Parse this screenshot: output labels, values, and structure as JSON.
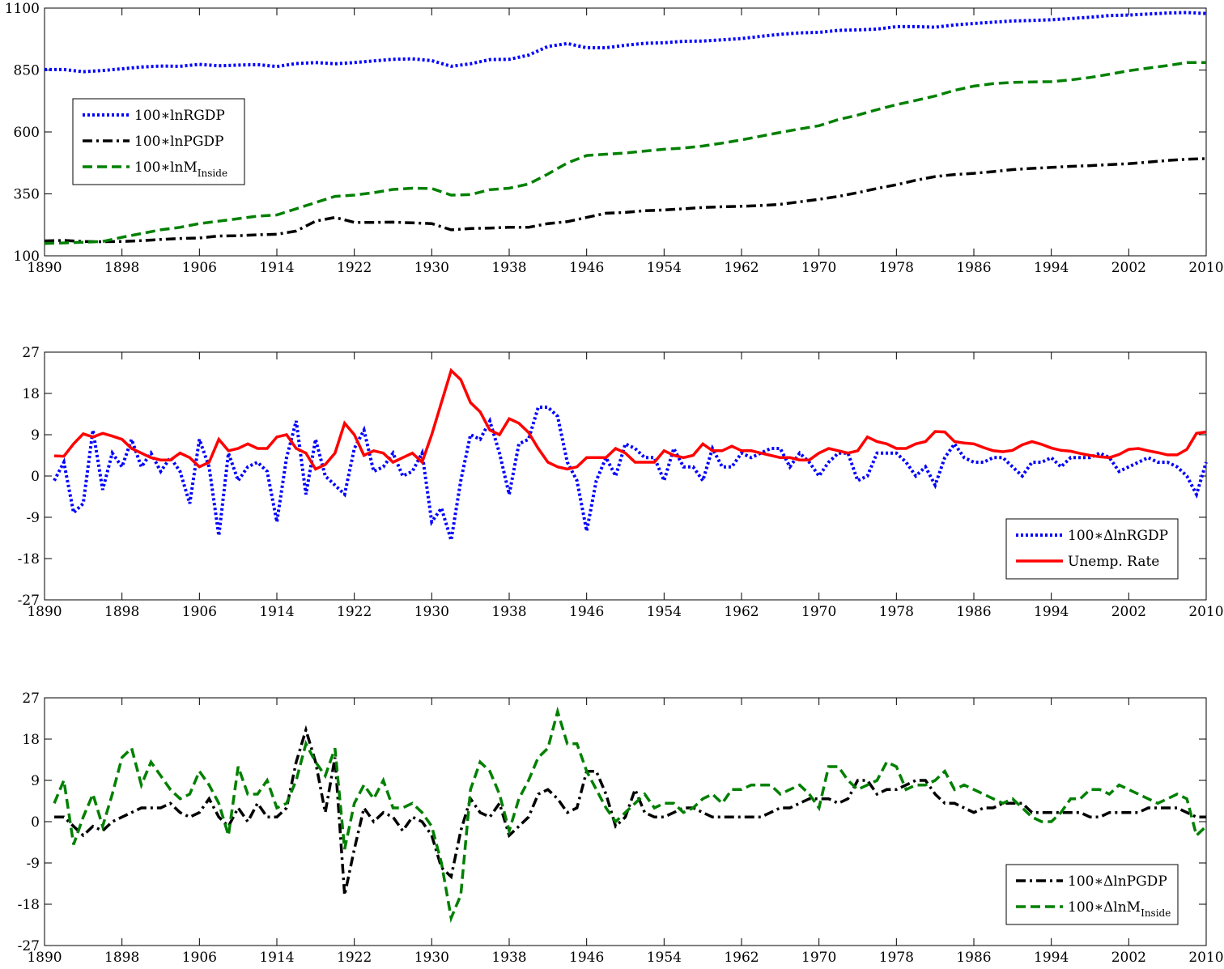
{
  "chart_data": [
    {
      "type": "line",
      "x": [
        1890,
        1892,
        1894,
        1896,
        1898,
        1900,
        1902,
        1904,
        1906,
        1908,
        1910,
        1912,
        1914,
        1916,
        1918,
        1920,
        1922,
        1924,
        1926,
        1928,
        1930,
        1932,
        1934,
        1936,
        1938,
        1940,
        1942,
        1944,
        1946,
        1948,
        1950,
        1952,
        1954,
        1956,
        1958,
        1960,
        1962,
        1964,
        1966,
        1968,
        1970,
        1972,
        1974,
        1976,
        1978,
        1980,
        1982,
        1984,
        1986,
        1988,
        1990,
        1992,
        1994,
        1996,
        1998,
        2000,
        2002,
        2004,
        2006,
        2008,
        2010
      ],
      "xlim": [
        1890,
        2010
      ],
      "xticks": [
        1890,
        1898,
        1906,
        1914,
        1922,
        1930,
        1938,
        1946,
        1954,
        1962,
        1970,
        1978,
        1986,
        1994,
        2002,
        2010
      ],
      "ylim": [
        100,
        1100
      ],
      "yticks": [
        100,
        350,
        600,
        850,
        1100
      ],
      "legend": "upper left",
      "series": [
        {
          "name": "100∗lnRGDP",
          "color": "#0000ff",
          "dash": "dotted",
          "values": [
            852,
            852,
            843,
            848,
            855,
            862,
            866,
            865,
            873,
            867,
            870,
            872,
            864,
            876,
            880,
            875,
            880,
            887,
            893,
            895,
            888,
            865,
            875,
            892,
            893,
            910,
            945,
            957,
            940,
            940,
            950,
            958,
            960,
            966,
            967,
            972,
            977,
            986,
            994,
            1000,
            1002,
            1010,
            1012,
            1015,
            1025,
            1025,
            1023,
            1032,
            1038,
            1043,
            1048,
            1050,
            1053,
            1058,
            1063,
            1070,
            1072,
            1076,
            1080,
            1082,
            1078
          ]
        },
        {
          "name": "100∗lnPGDP",
          "color": "#000000",
          "dash": "dashdot",
          "values": [
            160,
            162,
            158,
            157,
            158,
            161,
            166,
            170,
            172,
            180,
            181,
            185,
            187,
            200,
            240,
            255,
            235,
            235,
            236,
            233,
            230,
            205,
            210,
            212,
            215,
            215,
            230,
            238,
            255,
            272,
            275,
            282,
            285,
            290,
            295,
            298,
            300,
            303,
            308,
            318,
            328,
            340,
            355,
            372,
            387,
            405,
            420,
            428,
            433,
            440,
            448,
            453,
            457,
            461,
            464,
            468,
            472,
            478,
            485,
            490,
            492
          ]
        },
        {
          "name": "100∗lnM",
          "name_subscript": "Inside",
          "color": "#008000",
          "dash": "dashed",
          "values": [
            150,
            152,
            155,
            158,
            175,
            190,
            205,
            215,
            230,
            240,
            250,
            260,
            265,
            290,
            315,
            340,
            345,
            355,
            368,
            373,
            372,
            345,
            347,
            367,
            373,
            390,
            430,
            475,
            505,
            510,
            515,
            523,
            530,
            535,
            543,
            555,
            568,
            583,
            598,
            612,
            625,
            650,
            668,
            690,
            710,
            727,
            745,
            768,
            785,
            795,
            800,
            802,
            803,
            810,
            820,
            833,
            847,
            858,
            868,
            880,
            880
          ]
        }
      ]
    },
    {
      "type": "line",
      "x": [
        1891,
        1892,
        1893,
        1894,
        1895,
        1896,
        1897,
        1898,
        1899,
        1900,
        1901,
        1902,
        1903,
        1904,
        1905,
        1906,
        1907,
        1908,
        1909,
        1910,
        1911,
        1912,
        1913,
        1914,
        1915,
        1916,
        1917,
        1918,
        1919,
        1920,
        1921,
        1922,
        1923,
        1924,
        1925,
        1926,
        1927,
        1928,
        1929,
        1930,
        1931,
        1932,
        1933,
        1934,
        1935,
        1936,
        1937,
        1938,
        1939,
        1940,
        1941,
        1942,
        1943,
        1944,
        1945,
        1946,
        1947,
        1948,
        1949,
        1950,
        1951,
        1952,
        1953,
        1954,
        1955,
        1956,
        1957,
        1958,
        1959,
        1960,
        1961,
        1962,
        1963,
        1964,
        1965,
        1966,
        1967,
        1968,
        1969,
        1970,
        1971,
        1972,
        1973,
        1974,
        1975,
        1976,
        1977,
        1978,
        1979,
        1980,
        1981,
        1982,
        1983,
        1984,
        1985,
        1986,
        1987,
        1988,
        1989,
        1990,
        1991,
        1992,
        1993,
        1994,
        1995,
        1996,
        1997,
        1998,
        1999,
        2000,
        2001,
        2002,
        2003,
        2004,
        2005,
        2006,
        2007,
        2008,
        2009,
        2010
      ],
      "xlim": [
        1890,
        2010
      ],
      "xticks": [
        1890,
        1898,
        1906,
        1914,
        1922,
        1930,
        1938,
        1946,
        1954,
        1962,
        1970,
        1978,
        1986,
        1994,
        2002,
        2010
      ],
      "ylim": [
        -27,
        27
      ],
      "yticks": [
        -27,
        -18,
        -9,
        0,
        9,
        18,
        27
      ],
      "legend": "lower right",
      "series": [
        {
          "name": "100∗ΔlnRGDP",
          "color": "#0000ff",
          "dash": "dotted",
          "values": [
            -1,
            3,
            -8,
            -6,
            10,
            -3,
            5,
            2,
            8,
            2,
            5,
            1,
            4,
            1,
            -6,
            8,
            2,
            -13,
            5,
            -1,
            2,
            3,
            1,
            -10,
            4,
            12,
            -4,
            8,
            0,
            -2,
            -4,
            6,
            10,
            1,
            2,
            5,
            0,
            1,
            5,
            -10,
            -7,
            -14,
            -1,
            9,
            8,
            12,
            5,
            -4,
            7,
            8,
            15,
            15,
            13,
            3,
            -1,
            -12,
            -1,
            4,
            0,
            7,
            6,
            4,
            4,
            -1,
            6,
            2,
            2,
            -1,
            6,
            2,
            2,
            5,
            4,
            5,
            6,
            6,
            2,
            5,
            3,
            0,
            3,
            5,
            5,
            -1,
            0,
            5,
            5,
            5,
            3,
            0,
            2,
            -2,
            4,
            7,
            4,
            3,
            3,
            4,
            4,
            2,
            0,
            3,
            3,
            4,
            2,
            4,
            4,
            4,
            5,
            4,
            1,
            2,
            3,
            4,
            3,
            3,
            2,
            0,
            -4,
            3
          ]
        },
        {
          "name": "Unemp. Rate",
          "color": "#ff0000",
          "dash": "solid",
          "values": [
            4.4,
            4.3,
            7,
            9.2,
            8.5,
            9.3,
            8.7,
            8,
            6,
            5,
            4,
            3.5,
            3.5,
            5,
            4,
            2,
            3,
            8,
            5.5,
            6,
            7,
            6,
            6,
            8.5,
            9,
            6,
            5,
            1.5,
            2.5,
            5,
            11.5,
            9,
            4.5,
            5.5,
            5,
            3,
            4,
            5,
            3,
            9,
            16,
            23,
            21,
            16,
            14,
            10,
            9,
            12.5,
            11.5,
            9.5,
            6,
            3,
            2,
            1.5,
            2,
            4,
            4,
            4,
            6,
            5,
            3,
            3,
            3,
            5.5,
            4.5,
            4,
            4.5,
            7,
            5.5,
            5.5,
            6.5,
            5.5,
            5.5,
            5,
            4.5,
            4,
            4,
            3.5,
            3.5,
            5,
            6,
            5.5,
            5,
            5.5,
            8.5,
            7.5,
            7,
            6,
            6,
            7,
            7.5,
            9.7,
            9.6,
            7.5,
            7.2,
            7,
            6.2,
            5.5,
            5.3,
            5.6,
            6.8,
            7.5,
            6.9,
            6.1,
            5.6,
            5.4,
            4.9,
            4.5,
            4.2,
            4,
            4.7,
            5.8,
            6,
            5.5,
            5.1,
            4.6,
            4.6,
            5.8,
            9.3,
            9.6
          ]
        }
      ]
    },
    {
      "type": "line",
      "x": [
        1891,
        1892,
        1893,
        1894,
        1895,
        1896,
        1897,
        1898,
        1899,
        1900,
        1901,
        1902,
        1903,
        1904,
        1905,
        1906,
        1907,
        1908,
        1909,
        1910,
        1911,
        1912,
        1913,
        1914,
        1915,
        1916,
        1917,
        1918,
        1919,
        1920,
        1921,
        1922,
        1923,
        1924,
        1925,
        1926,
        1927,
        1928,
        1929,
        1930,
        1931,
        1932,
        1933,
        1934,
        1935,
        1936,
        1937,
        1938,
        1939,
        1940,
        1941,
        1942,
        1943,
        1944,
        1945,
        1946,
        1947,
        1948,
        1949,
        1950,
        1951,
        1952,
        1953,
        1954,
        1955,
        1956,
        1957,
        1958,
        1959,
        1960,
        1961,
        1962,
        1963,
        1964,
        1965,
        1966,
        1967,
        1968,
        1969,
        1970,
        1971,
        1972,
        1973,
        1974,
        1975,
        1976,
        1977,
        1978,
        1979,
        1980,
        1981,
        1982,
        1983,
        1984,
        1985,
        1986,
        1987,
        1988,
        1989,
        1990,
        1991,
        1992,
        1993,
        1994,
        1995,
        1996,
        1997,
        1998,
        1999,
        2000,
        2001,
        2002,
        2003,
        2004,
        2005,
        2006,
        2007,
        2008,
        2009,
        2010
      ],
      "xlim": [
        1890,
        2010
      ],
      "xticks": [
        1890,
        1898,
        1906,
        1914,
        1922,
        1930,
        1938,
        1946,
        1954,
        1962,
        1970,
        1978,
        1986,
        1994,
        2002,
        2010
      ],
      "ylim": [
        -27,
        27
      ],
      "yticks": [
        -27,
        -18,
        -9,
        0,
        9,
        18,
        27
      ],
      "legend": "lower right",
      "series": [
        {
          "name": "100∗ΔlnPGDP",
          "color": "#000000",
          "dash": "dashdot",
          "values": [
            1,
            1,
            -1,
            -3,
            -1,
            -2,
            0,
            1,
            2,
            3,
            3,
            3,
            4,
            2,
            1,
            2,
            5,
            1,
            -1,
            3,
            0,
            4,
            1,
            1,
            3,
            13,
            20,
            13,
            2,
            14,
            -16,
            -6,
            3,
            0,
            2,
            1,
            -2,
            1,
            0,
            -3,
            -10,
            -12,
            -2,
            5,
            2,
            1,
            4,
            -3,
            -1,
            1,
            6,
            7,
            5,
            2,
            3,
            11,
            11,
            6,
            -1,
            1,
            7,
            2,
            1,
            1,
            2,
            3,
            3,
            2,
            1,
            1,
            1,
            1,
            1,
            1,
            2,
            3,
            3,
            4,
            5,
            5,
            5,
            4,
            5,
            9,
            9,
            6,
            7,
            7,
            8,
            9,
            9,
            6,
            4,
            4,
            3,
            2,
            3,
            3,
            4,
            4,
            4,
            2,
            2,
            2,
            2,
            2,
            2,
            1,
            1,
            2,
            2,
            2,
            2,
            3,
            3,
            3,
            3,
            2,
            1,
            1
          ]
        },
        {
          "name": "100∗ΔlnM",
          "name_subscript": "Inside",
          "color": "#008000",
          "dash": "dashed",
          "values": [
            4,
            9,
            -5,
            1,
            6,
            -1,
            6,
            14,
            16,
            8,
            13,
            10,
            7,
            5,
            6,
            11,
            8,
            4,
            -3,
            12,
            6,
            6,
            9,
            3,
            4,
            9,
            17,
            13,
            10,
            16,
            -6,
            4,
            8,
            5,
            9,
            3,
            3,
            4,
            2,
            -1,
            -9,
            -21,
            -16,
            7,
            13,
            11,
            6,
            -2,
            5,
            9,
            14,
            16,
            24,
            17,
            17,
            11,
            7,
            3,
            0,
            2,
            4,
            6,
            3,
            4,
            4,
            2,
            3,
            5,
            6,
            4,
            7,
            7,
            8,
            8,
            8,
            6,
            7,
            8,
            6,
            3,
            12,
            12,
            9,
            7,
            8,
            9,
            13,
            12,
            7,
            8,
            8,
            9,
            11,
            7,
            8,
            7,
            6,
            5,
            4,
            5,
            3,
            1,
            0,
            0,
            2,
            5,
            5,
            7,
            7,
            6,
            8,
            7,
            6,
            5,
            4,
            5,
            6,
            5,
            -3,
            -1
          ]
        }
      ]
    }
  ]
}
